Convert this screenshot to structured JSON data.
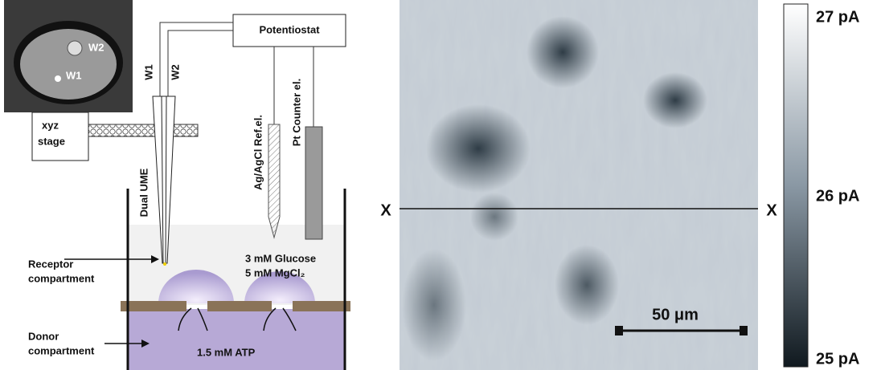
{
  "photo": {
    "labels": [
      "W2",
      "W1"
    ]
  },
  "setup": {
    "potentiostat": "Potentiostat",
    "stage": [
      "xyz",
      "stage"
    ],
    "electrode_labels": [
      "W1",
      "W2"
    ],
    "dual_ume": "Dual UME",
    "reference": "Ag/AgCl Ref.el.",
    "counter": "Pt Counter el.",
    "receptor": [
      "Receptor",
      "compartment"
    ],
    "donor": [
      "Donor",
      "compartment"
    ],
    "receptor_solution": [
      "3 mM Glucose",
      "5 mM MgCl₂"
    ],
    "donor_solution": "1.5 mM ATP"
  },
  "image": {
    "line_labels": [
      "X",
      "X"
    ],
    "scale_bar": "50 μm",
    "colorbar_labels": [
      "27 pA",
      "26 pA",
      "25 pA"
    ]
  }
}
